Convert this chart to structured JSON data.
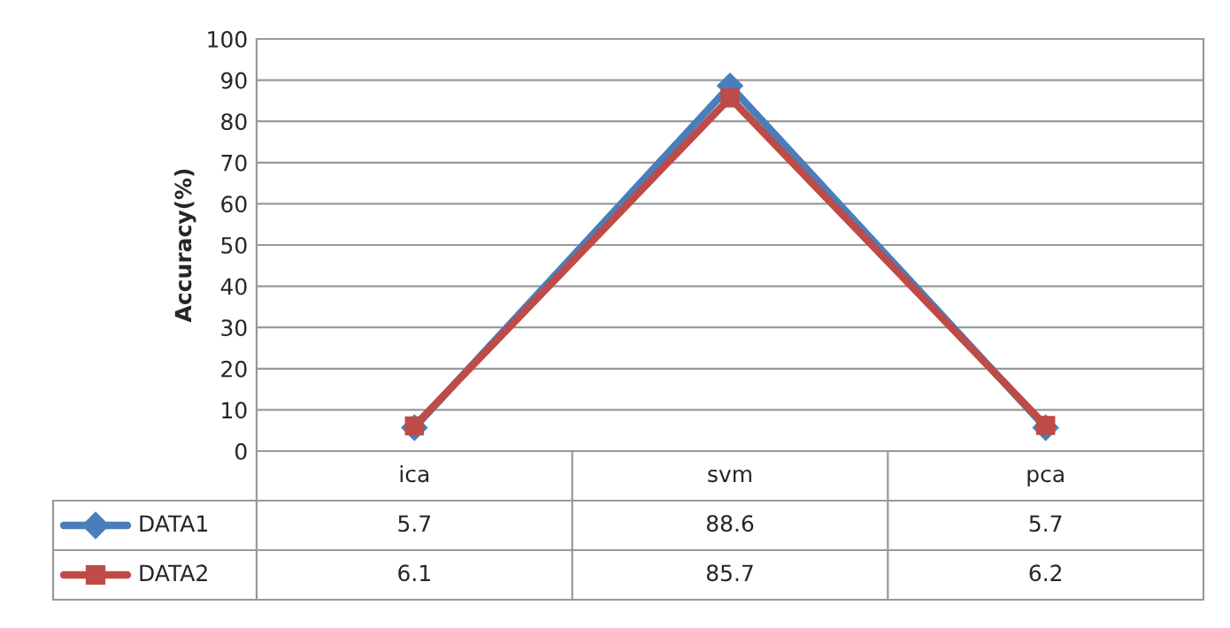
{
  "chart_data": {
    "type": "line",
    "ylabel": "Accuracy(%)",
    "categories": [
      "ica",
      "svm",
      "pca"
    ],
    "series": [
      {
        "name": "DATA1",
        "color": "#4a7ebb",
        "marker": "diamond",
        "values": [
          5.7,
          88.6,
          5.7
        ]
      },
      {
        "name": "DATA2",
        "color": "#be4b48",
        "marker": "square",
        "values": [
          6.1,
          85.7,
          6.2
        ]
      }
    ],
    "ylim": [
      0,
      100
    ],
    "yticks": [
      0,
      10,
      20,
      30,
      40,
      50,
      60,
      70,
      80,
      90,
      100
    ],
    "grid": "y",
    "legend": "bottom left",
    "data_labels": true,
    "line_style": "solid"
  }
}
